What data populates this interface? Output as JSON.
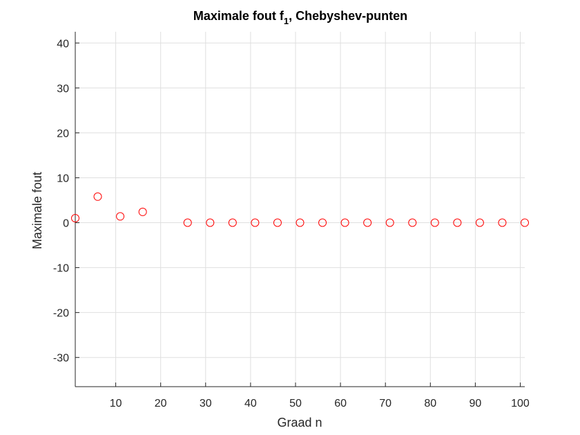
{
  "chart_data": {
    "type": "scatter",
    "title": "Maximale fout f",
    "title_subscript": "1",
    "title_suffix": ", Chebyshev-punten",
    "xlabel": "Graad n",
    "ylabel": "Maximale fout",
    "xlim": [
      1,
      101
    ],
    "ylim": [
      -36.5,
      42.5
    ],
    "xticks": [
      10,
      20,
      30,
      40,
      50,
      60,
      70,
      80,
      90,
      100
    ],
    "yticks": [
      -30,
      -20,
      -10,
      0,
      10,
      20,
      30,
      40
    ],
    "grid": true,
    "marker": "circle-open",
    "colors": {
      "marker": "#ff0000",
      "axis": "#262626",
      "grid": "#dfdfdf",
      "box": "#262626"
    },
    "series": [
      {
        "x": [
          1,
          6,
          11,
          16,
          26,
          31,
          36,
          41,
          46,
          51,
          56,
          61,
          66,
          71,
          76,
          81,
          86,
          91,
          96,
          101
        ],
        "y": [
          1.0,
          5.8,
          1.4,
          2.4,
          0.0,
          0.0,
          0.0,
          0.0,
          0.0,
          0.0,
          0.0,
          0.0,
          0.0,
          0.0,
          0.0,
          0.0,
          0.0,
          0.0,
          0.0,
          0.0
        ]
      }
    ]
  }
}
